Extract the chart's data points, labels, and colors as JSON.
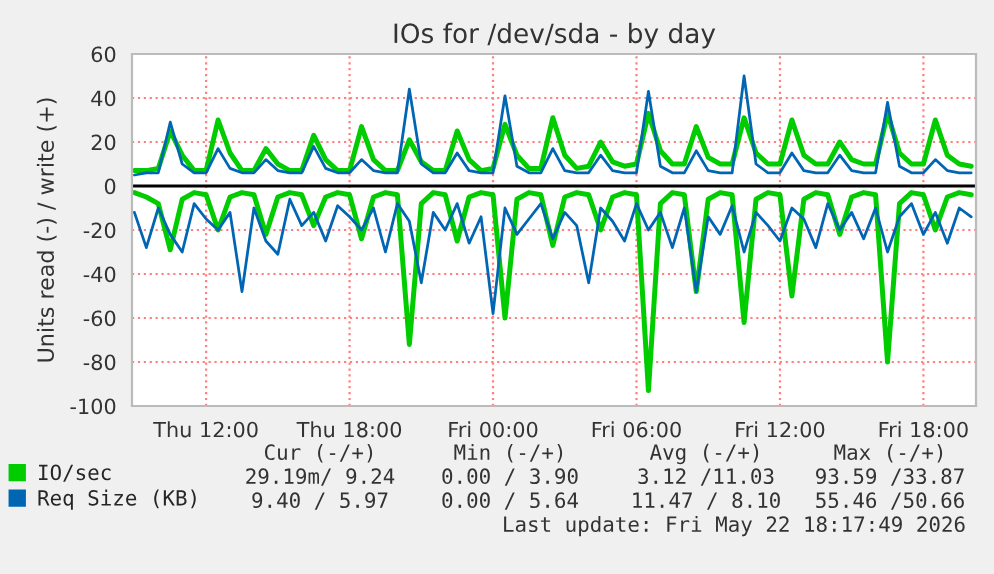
{
  "chart_data": {
    "type": "line",
    "title": "IOs for /dev/sda - by day",
    "ylabel": "Units read (-) / write (+)",
    "x": [
      "2026-05-21T09:00",
      "2026-05-21T09:30",
      "2026-05-21T10:00",
      "2026-05-21T10:30",
      "2026-05-21T11:00",
      "2026-05-21T11:30",
      "2026-05-21T12:00",
      "2026-05-21T12:30",
      "2026-05-21T13:00",
      "2026-05-21T13:30",
      "2026-05-21T14:00",
      "2026-05-21T14:30",
      "2026-05-21T15:00",
      "2026-05-21T15:30",
      "2026-05-21T16:00",
      "2026-05-21T16:30",
      "2026-05-21T17:00",
      "2026-05-21T17:30",
      "2026-05-21T18:00",
      "2026-05-21T18:30",
      "2026-05-21T19:00",
      "2026-05-21T19:30",
      "2026-05-21T20:00",
      "2026-05-21T20:30",
      "2026-05-21T21:00",
      "2026-05-21T21:30",
      "2026-05-21T22:00",
      "2026-05-21T22:30",
      "2026-05-21T23:00",
      "2026-05-21T23:30",
      "2026-05-22T00:00",
      "2026-05-22T00:30",
      "2026-05-22T01:00",
      "2026-05-22T01:30",
      "2026-05-22T02:00",
      "2026-05-22T02:30",
      "2026-05-22T03:00",
      "2026-05-22T03:30",
      "2026-05-22T04:00",
      "2026-05-22T04:30",
      "2026-05-22T05:00",
      "2026-05-22T05:30",
      "2026-05-22T06:00",
      "2026-05-22T06:30",
      "2026-05-22T07:00",
      "2026-05-22T07:30",
      "2026-05-22T08:00",
      "2026-05-22T08:30",
      "2026-05-22T09:00",
      "2026-05-22T09:30",
      "2026-05-22T10:00",
      "2026-05-22T10:30",
      "2026-05-22T11:00",
      "2026-05-22T11:30",
      "2026-05-22T12:00",
      "2026-05-22T12:30",
      "2026-05-22T13:00",
      "2026-05-22T13:30",
      "2026-05-22T14:00",
      "2026-05-22T14:30",
      "2026-05-22T15:00",
      "2026-05-22T15:30",
      "2026-05-22T16:00",
      "2026-05-22T16:30",
      "2026-05-22T17:00",
      "2026-05-22T17:30",
      "2026-05-22T18:00",
      "2026-05-22T18:30",
      "2026-05-22T19:00",
      "2026-05-22T19:30",
      "2026-05-22T20:00"
    ],
    "series": [
      {
        "name": "IO/sec",
        "color": "#00cc00",
        "values": [
          7,
          7,
          8,
          25,
          14,
          7,
          7,
          30,
          15,
          7,
          7,
          17,
          10,
          7,
          7,
          23,
          12,
          7,
          7,
          27,
          12,
          7,
          7,
          21,
          11,
          7,
          7,
          25,
          12,
          7,
          8,
          28,
          14,
          8,
          8,
          31,
          14,
          8,
          9,
          20,
          11,
          9,
          10,
          33,
          16,
          10,
          10,
          27,
          13,
          10,
          10,
          31,
          15,
          10,
          10,
          30,
          14,
          10,
          10,
          20,
          12,
          10,
          10,
          33,
          15,
          10,
          10,
          30,
          14,
          10,
          9
        ]
      },
      {
        "color": "#00cc00",
        "values": [
          -3,
          -5,
          -8,
          -29,
          -6,
          -3,
          -4,
          -20,
          -5,
          -3,
          -4,
          -22,
          -5,
          -3,
          -4,
          -18,
          -5,
          -3,
          -4,
          -24,
          -5,
          -3,
          -4,
          -72,
          -8,
          -3,
          -4,
          -25,
          -5,
          -3,
          -4,
          -60,
          -6,
          -3,
          -4,
          -27,
          -5,
          -3,
          -4,
          -20,
          -5,
          -3,
          -4,
          -93,
          -8,
          -3,
          -4,
          -48,
          -6,
          -3,
          -4,
          -62,
          -6,
          -3,
          -4,
          -50,
          -6,
          -3,
          -4,
          -22,
          -5,
          -3,
          -4,
          -80,
          -8,
          -3,
          -4,
          -20,
          -5,
          -3,
          -4
        ]
      },
      {
        "name": "Req Size (KB)",
        "color": "#0066b3",
        "values": [
          5,
          6,
          6,
          29,
          10,
          6,
          6,
          17,
          8,
          6,
          6,
          12,
          7,
          6,
          6,
          18,
          8,
          6,
          6,
          12,
          7,
          6,
          6,
          44,
          10,
          6,
          6,
          15,
          7,
          6,
          6,
          41,
          9,
          6,
          6,
          17,
          7,
          6,
          6,
          14,
          7,
          6,
          6,
          43,
          9,
          6,
          6,
          16,
          7,
          6,
          6,
          50,
          10,
          6,
          6,
          15,
          7,
          6,
          6,
          14,
          7,
          6,
          6,
          38,
          9,
          6,
          6,
          12,
          7,
          6,
          6
        ]
      },
      {
        "color": "#0066b3",
        "values": [
          -12,
          -28,
          -10,
          -22,
          -30,
          -8,
          -15,
          -20,
          -12,
          -48,
          -10,
          -25,
          -31,
          -6,
          -18,
          -12,
          -25,
          -9,
          -14,
          -20,
          -10,
          -30,
          -8,
          -16,
          -44,
          -12,
          -20,
          -8,
          -26,
          -14,
          -58,
          -10,
          -22,
          -15,
          -8,
          -24,
          -12,
          -18,
          -44,
          -10,
          -16,
          -25,
          -8,
          -20,
          -12,
          -28,
          -10,
          -48,
          -14,
          -22,
          -9,
          -30,
          -12,
          -18,
          -25,
          -10,
          -15,
          -28,
          -8,
          -20,
          -12,
          -24,
          -10,
          -30,
          -14,
          -8,
          -22,
          -12,
          -26,
          -10,
          -14
        ]
      }
    ],
    "xlim": [
      "2026-05-21T08:54",
      "2026-05-22T20:12"
    ],
    "xticks": [
      {
        "value": "2026-05-21T12:00",
        "label": "Thu 12:00"
      },
      {
        "value": "2026-05-21T18:00",
        "label": "Thu 18:00"
      },
      {
        "value": "2026-05-22T00:00",
        "label": "Fri 00:00"
      },
      {
        "value": "2026-05-22T06:00",
        "label": "Fri 06:00"
      },
      {
        "value": "2026-05-22T12:00",
        "label": "Fri 12:00"
      },
      {
        "value": "2026-05-22T18:00",
        "label": "Fri 18:00"
      }
    ],
    "ylim": [
      -100,
      60
    ],
    "yticks": [
      -100,
      -80,
      -60,
      -40,
      -20,
      0,
      20,
      40,
      60
    ],
    "ref_lines": [
      {
        "axis": "y",
        "value": 0,
        "color": "#000000"
      }
    ],
    "grid": true,
    "legend": "bottom",
    "marker": "none",
    "line_style": "solid",
    "annotations": [
      "Cur (-/+)",
      "Min (-/+)",
      "Avg (-/+)",
      "Max (-/+)",
      "29.19m/ 9.24",
      "0.00 / 3.90",
      "3.12 /11.03",
      "93.59 /33.87",
      "9.40 / 5.97",
      "0.00 / 5.64",
      "11.47 / 8.10",
      "55.46 /50.66",
      "Last update: Fri May 22 18:17:49 2026"
    ]
  }
}
